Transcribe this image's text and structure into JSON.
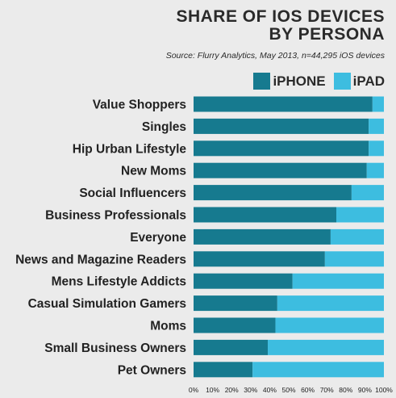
{
  "chart_data": {
    "type": "bar",
    "orientation": "horizontal",
    "stacked": true,
    "title_line1": "SHARE OF IOS DEVICES",
    "title_line2": "BY PERSONA",
    "subtitle": "Source: Flurry Analytics, May 2013, n=44,295 iOS devices",
    "categories": [
      "Value Shoppers",
      "Singles",
      "Hip Urban Lifestyle",
      "New Moms",
      "Social Influencers",
      "Business Professionals",
      "Everyone",
      "News and Magazine Readers",
      "Mens Lifestyle Addicts",
      "Casual Simulation Gamers",
      "Moms",
      "Small Business Owners",
      "Pet Owners"
    ],
    "series": [
      {
        "name": "iPHONE",
        "color": "#167a8f",
        "values": [
          94,
          92,
          92,
          91,
          83,
          75,
          72,
          69,
          52,
          44,
          43,
          39,
          31
        ]
      },
      {
        "name": "iPAD",
        "color": "#3dbde0",
        "values": [
          6,
          8,
          8,
          9,
          17,
          25,
          28,
          31,
          48,
          56,
          57,
          61,
          69
        ]
      }
    ],
    "xlim": [
      0,
      100
    ],
    "xticks": [
      "0%",
      "10%",
      "20%",
      "30%",
      "40%",
      "50%",
      "60%",
      "70%",
      "80%",
      "90%",
      "100%"
    ],
    "legend_position": "top-right"
  }
}
